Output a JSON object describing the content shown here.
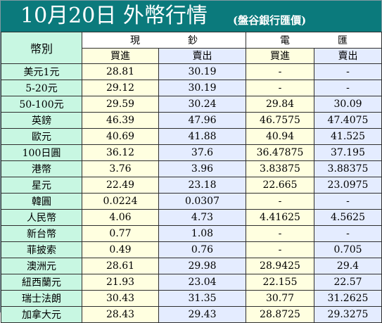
{
  "title": "10月20日 外幣行情",
  "subtitle": "(盤谷銀行匯價)",
  "headers": {
    "currency": "幣別",
    "cash": "現鈔",
    "cash_left": "現",
    "cash_right": "鈔",
    "telegraphic_left": "電",
    "telegraphic_right": "匯",
    "buy": "買進",
    "sell": "賣出"
  },
  "colors": {
    "title_bg": "#0b7a7c",
    "currency_col": "#c8f7e2",
    "buy_col": "#ffffe0",
    "sell_col": "#e4ecff"
  },
  "rows": [
    {
      "currency": "美元1元",
      "cash_buy": "28.81",
      "cash_sell": "30.19",
      "tt_buy": "-",
      "tt_sell": "-"
    },
    {
      "currency": "5-20元",
      "cash_buy": "29.12",
      "cash_sell": "30.19",
      "tt_buy": "-",
      "tt_sell": "-"
    },
    {
      "currency": "50-100元",
      "cash_buy": "29.59",
      "cash_sell": "30.24",
      "tt_buy": "29.84",
      "tt_sell": "30.09"
    },
    {
      "currency": "英鎊",
      "cash_buy": "46.39",
      "cash_sell": "47.96",
      "tt_buy": "46.7575",
      "tt_sell": "47.4075"
    },
    {
      "currency": "歐元",
      "cash_buy": "40.69",
      "cash_sell": "41.88",
      "tt_buy": "40.94",
      "tt_sell": "41.525"
    },
    {
      "currency": "100日圓",
      "cash_buy": "36.12",
      "cash_sell": "37.6",
      "tt_buy": "36.47875",
      "tt_sell": "37.195"
    },
    {
      "currency": "港幣",
      "cash_buy": "3.76",
      "cash_sell": "3.96",
      "tt_buy": "3.83875",
      "tt_sell": "3.88375"
    },
    {
      "currency": "星元",
      "cash_buy": "22.49",
      "cash_sell": "23.18",
      "tt_buy": "22.665",
      "tt_sell": "23.0975"
    },
    {
      "currency": "韓圓",
      "cash_buy": "0.0224",
      "cash_sell": "0.0307",
      "tt_buy": "-",
      "tt_sell": "-"
    },
    {
      "currency": "人民幣",
      "cash_buy": "4.06",
      "cash_sell": "4.73",
      "tt_buy": "4.41625",
      "tt_sell": "4.5625"
    },
    {
      "currency": "新台幣",
      "cash_buy": "0.77",
      "cash_sell": "1.08",
      "tt_buy": "-",
      "tt_sell": "-"
    },
    {
      "currency": "菲披索",
      "cash_buy": "0.49",
      "cash_sell": "0.76",
      "tt_buy": "-",
      "tt_sell": "0.705"
    },
    {
      "currency": "澳洲元",
      "cash_buy": "28.61",
      "cash_sell": "29.98",
      "tt_buy": "28.9425",
      "tt_sell": "29.4"
    },
    {
      "currency": "紐西蘭元",
      "cash_buy": "21.93",
      "cash_sell": "23.04",
      "tt_buy": "22.155",
      "tt_sell": "22.57"
    },
    {
      "currency": "瑞士法朗",
      "cash_buy": "30.43",
      "cash_sell": "31.35",
      "tt_buy": "30.77",
      "tt_sell": "31.2625"
    },
    {
      "currency": "加拿大元",
      "cash_buy": "28.43",
      "cash_sell": "29.43",
      "tt_buy": "28.8725",
      "tt_sell": "29.3275"
    }
  ]
}
